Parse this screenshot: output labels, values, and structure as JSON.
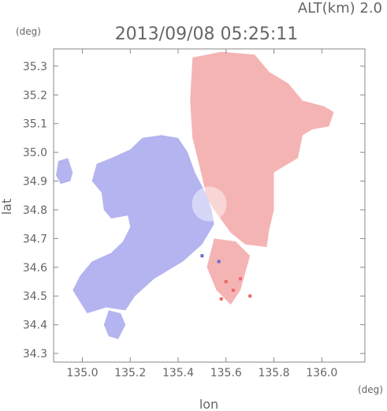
{
  "header": {
    "alt_label": "ALT(km)  2.0",
    "timestamp": "2013/09/08  05:25:11"
  },
  "chart_data": {
    "type": "heatmap",
    "title": "2013/09/08  05:25:11",
    "xlabel": "lon",
    "ylabel": "lat",
    "x_unit": "(deg)",
    "y_unit": "(deg)",
    "xlim": [
      134.88,
      136.18
    ],
    "ylim": [
      34.27,
      35.36
    ],
    "x_ticks": [
      135.0,
      135.2,
      135.4,
      135.6,
      135.8,
      136.0
    ],
    "y_ticks": [
      34.3,
      34.4,
      34.5,
      34.6,
      34.7,
      34.8,
      34.9,
      35.0,
      35.1,
      35.2,
      35.3
    ],
    "x_tick_labels": [
      "135.0",
      "135.2",
      "135.4",
      "135.6",
      "135.8",
      "136.0"
    ],
    "y_tick_labels": [
      "34.3",
      "34.4",
      "34.5",
      "34.6",
      "34.7",
      "34.8",
      "34.9",
      "35.0",
      "35.1",
      "35.2",
      "35.3"
    ],
    "grid": false,
    "radar_center": {
      "lon": 135.53,
      "lat": 34.82
    },
    "colors": {
      "approaching": "#b4b4f0",
      "receding": "#f5b4b4",
      "strong_receding": "#ee6666",
      "strong_approaching": "#6a6ad8",
      "axis": "#888888"
    },
    "regions": [
      {
        "name": "receding",
        "points": [
          [
            135.46,
            35.33
          ],
          [
            135.58,
            35.35
          ],
          [
            135.72,
            35.34
          ],
          [
            135.78,
            35.28
          ],
          [
            135.86,
            35.24
          ],
          [
            135.92,
            35.18
          ],
          [
            136.01,
            35.16
          ],
          [
            136.05,
            35.14
          ],
          [
            136.03,
            35.09
          ],
          [
            135.96,
            35.08
          ],
          [
            135.92,
            35.06
          ],
          [
            135.9,
            34.98
          ],
          [
            135.84,
            34.95
          ],
          [
            135.8,
            34.93
          ],
          [
            135.8,
            34.86
          ],
          [
            135.8,
            34.8
          ],
          [
            135.78,
            34.73
          ],
          [
            135.77,
            34.67
          ],
          [
            135.68,
            34.68
          ],
          [
            135.62,
            34.72
          ],
          [
            135.55,
            34.8
          ],
          [
            135.52,
            34.84
          ],
          [
            135.49,
            34.95
          ],
          [
            135.46,
            35.05
          ],
          [
            135.45,
            35.18
          ],
          [
            135.46,
            35.33
          ]
        ]
      },
      {
        "name": "approaching",
        "points": [
          [
            135.52,
            34.85
          ],
          [
            135.47,
            34.93
          ],
          [
            135.44,
            35.0
          ],
          [
            135.4,
            35.05
          ],
          [
            135.33,
            35.06
          ],
          [
            135.25,
            35.05
          ],
          [
            135.2,
            35.01
          ],
          [
            135.12,
            34.98
          ],
          [
            135.06,
            34.96
          ],
          [
            135.04,
            34.9
          ],
          [
            135.08,
            34.86
          ],
          [
            135.09,
            34.8
          ],
          [
            135.12,
            34.77
          ],
          [
            135.19,
            34.78
          ],
          [
            135.2,
            34.74
          ],
          [
            135.17,
            34.69
          ],
          [
            135.12,
            34.65
          ],
          [
            135.04,
            34.62
          ],
          [
            134.99,
            34.57
          ],
          [
            134.96,
            34.52
          ],
          [
            135.02,
            34.44
          ],
          [
            135.1,
            34.46
          ],
          [
            135.18,
            34.45
          ],
          [
            135.22,
            34.5
          ],
          [
            135.3,
            34.56
          ],
          [
            135.42,
            34.62
          ],
          [
            135.5,
            34.68
          ],
          [
            135.55,
            34.75
          ],
          [
            135.54,
            34.8
          ],
          [
            135.52,
            34.85
          ]
        ]
      },
      {
        "name": "approaching",
        "points": [
          [
            134.9,
            34.97
          ],
          [
            134.94,
            34.98
          ],
          [
            134.96,
            34.93
          ],
          [
            134.95,
            34.9
          ],
          [
            134.91,
            34.89
          ],
          [
            134.89,
            34.92
          ],
          [
            134.9,
            34.97
          ]
        ]
      },
      {
        "name": "approaching",
        "points": [
          [
            135.11,
            34.45
          ],
          [
            135.16,
            34.44
          ],
          [
            135.18,
            34.4
          ],
          [
            135.15,
            34.35
          ],
          [
            135.11,
            34.36
          ],
          [
            135.09,
            34.4
          ],
          [
            135.11,
            34.45
          ]
        ]
      },
      {
        "name": "receding",
        "points": [
          [
            135.55,
            34.7
          ],
          [
            135.64,
            34.69
          ],
          [
            135.7,
            34.64
          ],
          [
            135.68,
            34.58
          ],
          [
            135.66,
            34.52
          ],
          [
            135.62,
            34.47
          ],
          [
            135.56,
            34.52
          ],
          [
            135.52,
            34.6
          ],
          [
            135.55,
            34.7
          ]
        ]
      }
    ],
    "cells": [
      {
        "lon": 135.6,
        "lat": 34.55,
        "value": "strong_receding"
      },
      {
        "lon": 135.63,
        "lat": 34.52,
        "value": "strong_receding"
      },
      {
        "lon": 135.66,
        "lat": 34.56,
        "value": "strong_receding"
      },
      {
        "lon": 135.7,
        "lat": 34.5,
        "value": "strong_receding"
      },
      {
        "lon": 135.58,
        "lat": 34.49,
        "value": "strong_receding"
      },
      {
        "lon": 135.57,
        "lat": 34.62,
        "value": "strong_approaching"
      },
      {
        "lon": 135.5,
        "lat": 34.64,
        "value": "strong_approaching"
      }
    ]
  }
}
